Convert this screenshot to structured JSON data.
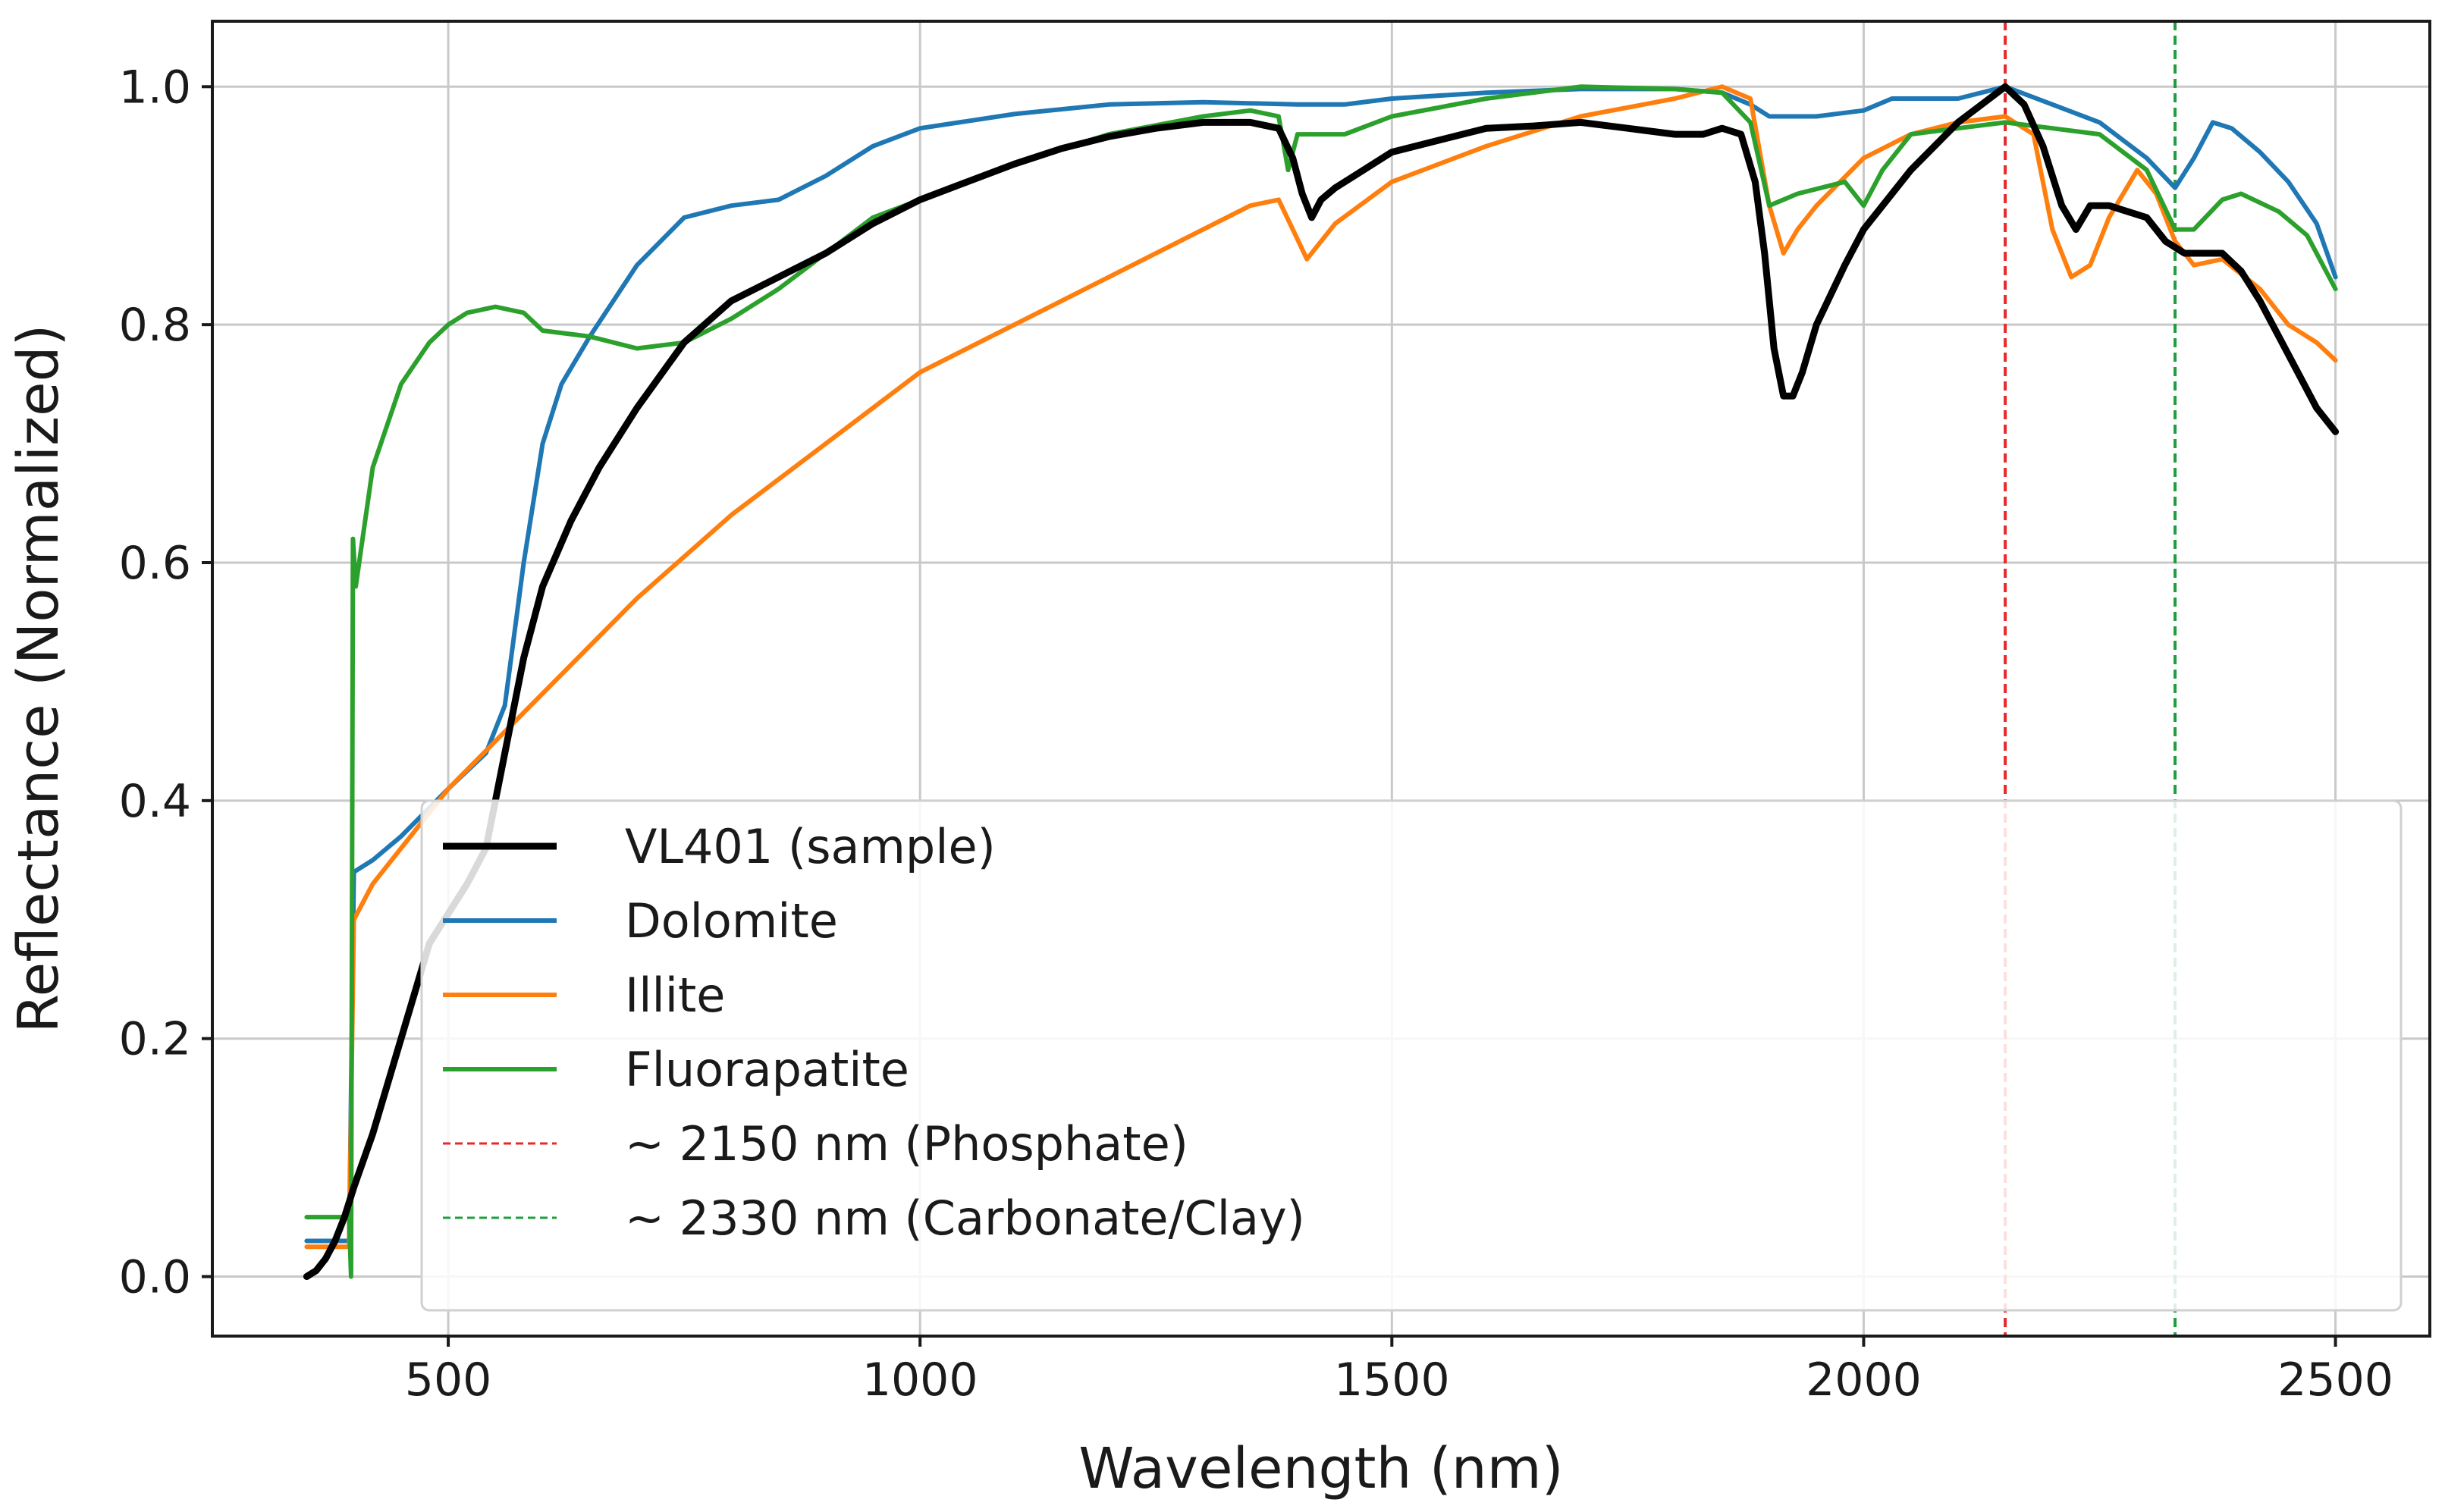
{
  "chart_data": {
    "type": "line",
    "title": "",
    "xlabel": "Wavelength (nm)",
    "ylabel": "Reflectance (Normalized)",
    "xlim": [
      250,
      2600
    ],
    "ylim": [
      -0.05,
      1.055
    ],
    "xticks": [
      500,
      1000,
      1500,
      2000,
      2500
    ],
    "yticks": [
      0.0,
      0.2,
      0.4,
      0.6,
      0.8,
      1.0
    ],
    "xtick_labels": [
      "500",
      "1000",
      "1500",
      "2000",
      "2500"
    ],
    "ytick_labels": [
      "0.0",
      "0.2",
      "0.4",
      "0.6",
      "0.8",
      "1.0"
    ],
    "grid": true,
    "legend_position": "lower-right",
    "series": [
      {
        "name": "VL401 (sample)",
        "color": "#000000",
        "style": "solid",
        "weight": "thick",
        "points": [
          [
            350,
            0.0
          ],
          [
            360,
            0.005
          ],
          [
            370,
            0.015
          ],
          [
            380,
            0.03
          ],
          [
            390,
            0.05
          ],
          [
            400,
            0.075
          ],
          [
            420,
            0.12
          ],
          [
            450,
            0.2
          ],
          [
            480,
            0.28
          ],
          [
            520,
            0.33
          ],
          [
            540,
            0.36
          ],
          [
            560,
            0.44
          ],
          [
            580,
            0.52
          ],
          [
            600,
            0.58
          ],
          [
            630,
            0.635
          ],
          [
            660,
            0.68
          ],
          [
            700,
            0.73
          ],
          [
            750,
            0.785
          ],
          [
            800,
            0.82
          ],
          [
            850,
            0.84
          ],
          [
            900,
            0.86
          ],
          [
            950,
            0.885
          ],
          [
            1000,
            0.905
          ],
          [
            1050,
            0.92
          ],
          [
            1100,
            0.935
          ],
          [
            1150,
            0.948
          ],
          [
            1200,
            0.958
          ],
          [
            1250,
            0.965
          ],
          [
            1300,
            0.97
          ],
          [
            1350,
            0.97
          ],
          [
            1380,
            0.965
          ],
          [
            1395,
            0.94
          ],
          [
            1405,
            0.91
          ],
          [
            1415,
            0.89
          ],
          [
            1425,
            0.905
          ],
          [
            1440,
            0.915
          ],
          [
            1470,
            0.93
          ],
          [
            1500,
            0.945
          ],
          [
            1550,
            0.955
          ],
          [
            1600,
            0.965
          ],
          [
            1650,
            0.967
          ],
          [
            1700,
            0.97
          ],
          [
            1750,
            0.965
          ],
          [
            1800,
            0.96
          ],
          [
            1830,
            0.96
          ],
          [
            1850,
            0.965
          ],
          [
            1870,
            0.96
          ],
          [
            1885,
            0.92
          ],
          [
            1895,
            0.86
          ],
          [
            1905,
            0.78
          ],
          [
            1915,
            0.74
          ],
          [
            1925,
            0.74
          ],
          [
            1935,
            0.76
          ],
          [
            1950,
            0.8
          ],
          [
            1980,
            0.85
          ],
          [
            2000,
            0.88
          ],
          [
            2050,
            0.93
          ],
          [
            2100,
            0.97
          ],
          [
            2150,
            1.0
          ],
          [
            2170,
            0.985
          ],
          [
            2190,
            0.95
          ],
          [
            2210,
            0.9
          ],
          [
            2225,
            0.88
          ],
          [
            2240,
            0.9
          ],
          [
            2260,
            0.9
          ],
          [
            2280,
            0.895
          ],
          [
            2300,
            0.89
          ],
          [
            2320,
            0.87
          ],
          [
            2340,
            0.86
          ],
          [
            2360,
            0.86
          ],
          [
            2380,
            0.86
          ],
          [
            2400,
            0.845
          ],
          [
            2420,
            0.82
          ],
          [
            2440,
            0.79
          ],
          [
            2460,
            0.76
          ],
          [
            2480,
            0.73
          ],
          [
            2500,
            0.71
          ]
        ]
      },
      {
        "name": "Dolomite",
        "color": "#1f77b4",
        "style": "solid",
        "weight": "normal",
        "points": [
          [
            350,
            0.03
          ],
          [
            395,
            0.03
          ],
          [
            400,
            0.34
          ],
          [
            420,
            0.35
          ],
          [
            450,
            0.37
          ],
          [
            500,
            0.41
          ],
          [
            540,
            0.44
          ],
          [
            560,
            0.48
          ],
          [
            580,
            0.6
          ],
          [
            600,
            0.7
          ],
          [
            620,
            0.75
          ],
          [
            650,
            0.79
          ],
          [
            700,
            0.85
          ],
          [
            750,
            0.89
          ],
          [
            800,
            0.9
          ],
          [
            850,
            0.905
          ],
          [
            900,
            0.925
          ],
          [
            950,
            0.95
          ],
          [
            1000,
            0.965
          ],
          [
            1100,
            0.977
          ],
          [
            1200,
            0.985
          ],
          [
            1300,
            0.987
          ],
          [
            1400,
            0.985
          ],
          [
            1450,
            0.985
          ],
          [
            1500,
            0.99
          ],
          [
            1600,
            0.995
          ],
          [
            1700,
            0.998
          ],
          [
            1800,
            0.998
          ],
          [
            1850,
            0.995
          ],
          [
            1880,
            0.985
          ],
          [
            1900,
            0.975
          ],
          [
            1950,
            0.975
          ],
          [
            2000,
            0.98
          ],
          [
            2030,
            0.99
          ],
          [
            2100,
            0.99
          ],
          [
            2150,
            1.0
          ],
          [
            2200,
            0.985
          ],
          [
            2250,
            0.97
          ],
          [
            2300,
            0.94
          ],
          [
            2330,
            0.915
          ],
          [
            2350,
            0.94
          ],
          [
            2370,
            0.97
          ],
          [
            2390,
            0.965
          ],
          [
            2420,
            0.945
          ],
          [
            2450,
            0.92
          ],
          [
            2480,
            0.885
          ],
          [
            2500,
            0.84
          ]
        ]
      },
      {
        "name": "Illite",
        "color": "#ff7f0e",
        "style": "solid",
        "weight": "normal",
        "points": [
          [
            350,
            0.025
          ],
          [
            395,
            0.025
          ],
          [
            400,
            0.3
          ],
          [
            420,
            0.33
          ],
          [
            450,
            0.36
          ],
          [
            500,
            0.41
          ],
          [
            550,
            0.45
          ],
          [
            600,
            0.49
          ],
          [
            700,
            0.57
          ],
          [
            800,
            0.64
          ],
          [
            900,
            0.7
          ],
          [
            1000,
            0.76
          ],
          [
            1100,
            0.8
          ],
          [
            1200,
            0.84
          ],
          [
            1300,
            0.88
          ],
          [
            1350,
            0.9
          ],
          [
            1380,
            0.905
          ],
          [
            1395,
            0.88
          ],
          [
            1410,
            0.855
          ],
          [
            1425,
            0.87
          ],
          [
            1440,
            0.885
          ],
          [
            1500,
            0.92
          ],
          [
            1600,
            0.95
          ],
          [
            1700,
            0.975
          ],
          [
            1800,
            0.99
          ],
          [
            1850,
            1.0
          ],
          [
            1880,
            0.99
          ],
          [
            1900,
            0.9
          ],
          [
            1915,
            0.86
          ],
          [
            1930,
            0.88
          ],
          [
            1950,
            0.9
          ],
          [
            2000,
            0.94
          ],
          [
            2050,
            0.96
          ],
          [
            2100,
            0.97
          ],
          [
            2150,
            0.975
          ],
          [
            2180,
            0.96
          ],
          [
            2200,
            0.88
          ],
          [
            2220,
            0.84
          ],
          [
            2240,
            0.85
          ],
          [
            2260,
            0.89
          ],
          [
            2290,
            0.93
          ],
          [
            2310,
            0.91
          ],
          [
            2330,
            0.87
          ],
          [
            2350,
            0.85
          ],
          [
            2380,
            0.855
          ],
          [
            2420,
            0.83
          ],
          [
            2450,
            0.8
          ],
          [
            2480,
            0.785
          ],
          [
            2500,
            0.77
          ]
        ]
      },
      {
        "name": "Fluorapatite",
        "color": "#2ca02c",
        "style": "solid",
        "weight": "normal",
        "points": [
          [
            350,
            0.05
          ],
          [
            395,
            0.05
          ],
          [
            397,
            0.0
          ],
          [
            399,
            0.62
          ],
          [
            402,
            0.58
          ],
          [
            420,
            0.68
          ],
          [
            450,
            0.75
          ],
          [
            480,
            0.785
          ],
          [
            500,
            0.8
          ],
          [
            520,
            0.81
          ],
          [
            550,
            0.815
          ],
          [
            580,
            0.81
          ],
          [
            600,
            0.795
          ],
          [
            650,
            0.79
          ],
          [
            700,
            0.78
          ],
          [
            750,
            0.785
          ],
          [
            800,
            0.805
          ],
          [
            850,
            0.83
          ],
          [
            900,
            0.86
          ],
          [
            950,
            0.89
          ],
          [
            1000,
            0.905
          ],
          [
            1100,
            0.935
          ],
          [
            1200,
            0.96
          ],
          [
            1300,
            0.975
          ],
          [
            1350,
            0.98
          ],
          [
            1380,
            0.975
          ],
          [
            1390,
            0.93
          ],
          [
            1400,
            0.96
          ],
          [
            1420,
            0.96
          ],
          [
            1450,
            0.96
          ],
          [
            1500,
            0.975
          ],
          [
            1600,
            0.99
          ],
          [
            1700,
            1.0
          ],
          [
            1800,
            0.998
          ],
          [
            1850,
            0.995
          ],
          [
            1880,
            0.97
          ],
          [
            1900,
            0.9
          ],
          [
            1930,
            0.91
          ],
          [
            1980,
            0.92
          ],
          [
            2000,
            0.9
          ],
          [
            2020,
            0.93
          ],
          [
            2050,
            0.96
          ],
          [
            2100,
            0.965
          ],
          [
            2150,
            0.97
          ],
          [
            2200,
            0.965
          ],
          [
            2250,
            0.96
          ],
          [
            2300,
            0.93
          ],
          [
            2330,
            0.88
          ],
          [
            2350,
            0.88
          ],
          [
            2380,
            0.905
          ],
          [
            2400,
            0.91
          ],
          [
            2440,
            0.895
          ],
          [
            2470,
            0.875
          ],
          [
            2500,
            0.83
          ]
        ]
      }
    ],
    "reference_lines": [
      {
        "label": "~ 2150 nm (Phosphate)",
        "x": 2150,
        "color": "#e8292b",
        "style": "dashed"
      },
      {
        "label": "~ 2330 nm (Carbonate/Clay)",
        "x": 2330,
        "color": "#1f9e3f",
        "style": "dashed"
      }
    ]
  }
}
